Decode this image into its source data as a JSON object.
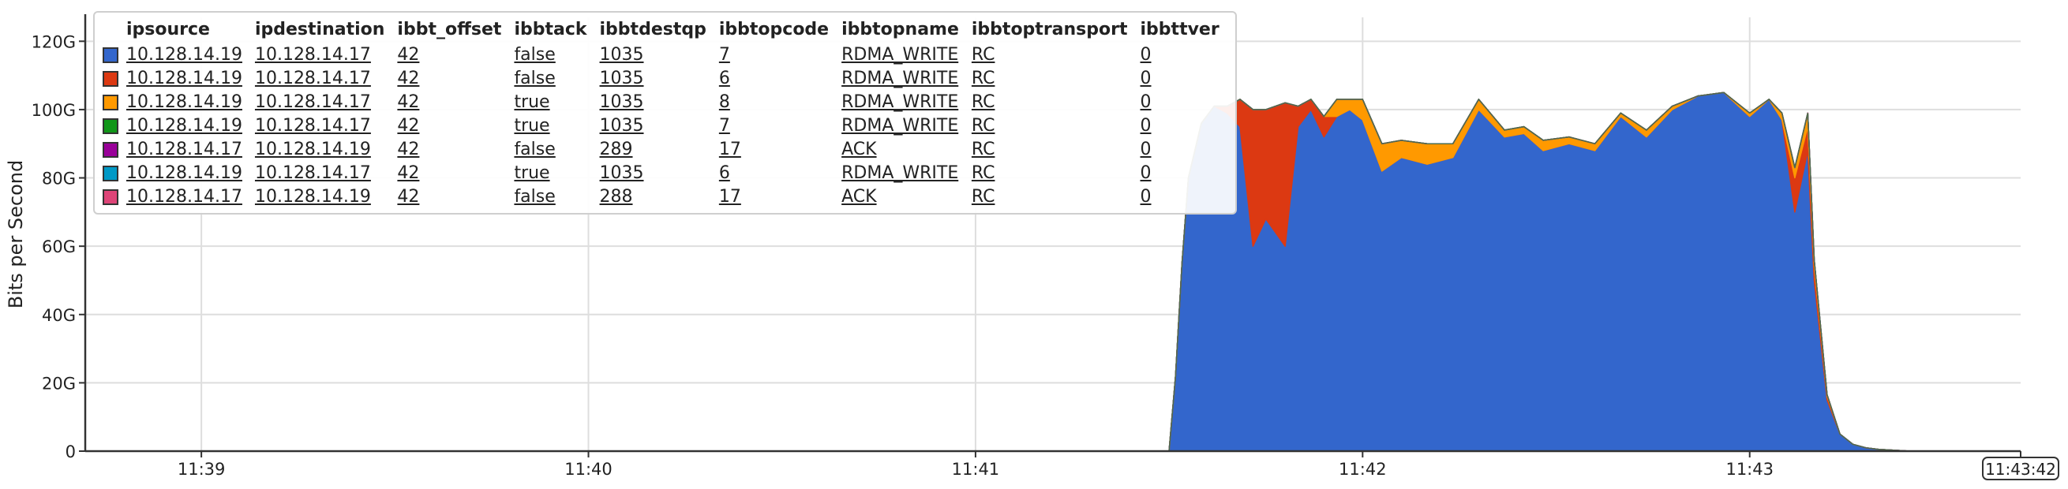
{
  "chart_data": {
    "type": "area",
    "stacked": true,
    "ylabel": "Bits per Second",
    "xlabel": "",
    "y_ticks": [
      {
        "value": 0,
        "label": "0"
      },
      {
        "value": 20,
        "label": "20G"
      },
      {
        "value": 40,
        "label": "40G"
      },
      {
        "value": 60,
        "label": "60G"
      },
      {
        "value": 80,
        "label": "80G"
      },
      {
        "value": 100,
        "label": "100G"
      },
      {
        "value": 120,
        "label": "120G"
      }
    ],
    "ylim": [
      0,
      127
    ],
    "x_range": [
      "11:38:42",
      "11:43:42"
    ],
    "x_ticks": [
      "11:39",
      "11:40",
      "11:41",
      "11:42",
      "11:43"
    ],
    "x_end_label": "11:43:42",
    "grid": true,
    "legend_placement": "top-left",
    "legend_columns": [
      "ipsource",
      "ipdestination",
      "ibbt_offset",
      "ibbtack",
      "ibbtdestqp",
      "ibbtopcode",
      "ibbtopname",
      "ibbtoptransport",
      "ibbttver"
    ],
    "legend_rows": [
      {
        "color": "#3366cc",
        "cells": [
          "10.128.14.19",
          "10.128.14.17",
          "42",
          "false",
          "1035",
          "7",
          "RDMA_WRITE",
          "RC",
          "0"
        ]
      },
      {
        "color": "#dc3912",
        "cells": [
          "10.128.14.19",
          "10.128.14.17",
          "42",
          "false",
          "1035",
          "6",
          "RDMA_WRITE",
          "RC",
          "0"
        ]
      },
      {
        "color": "#ff9900",
        "cells": [
          "10.128.14.19",
          "10.128.14.17",
          "42",
          "true",
          "1035",
          "8",
          "RDMA_WRITE",
          "RC",
          "0"
        ]
      },
      {
        "color": "#109618",
        "cells": [
          "10.128.14.19",
          "10.128.14.17",
          "42",
          "true",
          "1035",
          "7",
          "RDMA_WRITE",
          "RC",
          "0"
        ]
      },
      {
        "color": "#990099",
        "cells": [
          "10.128.14.17",
          "10.128.14.19",
          "42",
          "false",
          "289",
          "17",
          "ACK",
          "RC",
          "0"
        ]
      },
      {
        "color": "#0099c6",
        "cells": [
          "10.128.14.19",
          "10.128.14.17",
          "42",
          "true",
          "1035",
          "6",
          "RDMA_WRITE",
          "RC",
          "0"
        ]
      },
      {
        "color": "#dd4477",
        "cells": [
          "10.128.14.17",
          "10.128.14.19",
          "42",
          "false",
          "288",
          "17",
          "ACK",
          "RC",
          "0"
        ]
      }
    ],
    "x": [
      "11:41:30",
      "11:41:31",
      "11:41:32",
      "11:41:33",
      "11:41:35",
      "11:41:37",
      "11:41:39",
      "11:41:41",
      "11:41:43",
      "11:41:45",
      "11:41:48",
      "11:41:50",
      "11:41:52",
      "11:41:54",
      "11:41:56",
      "11:41:58",
      "11:42:00",
      "11:42:03",
      "11:42:06",
      "11:42:10",
      "11:42:14",
      "11:42:18",
      "11:42:22",
      "11:42:25",
      "11:42:28",
      "11:42:32",
      "11:42:36",
      "11:42:40",
      "11:42:44",
      "11:42:48",
      "11:42:52",
      "11:42:56",
      "11:43:00",
      "11:43:03",
      "11:43:05",
      "11:43:07",
      "11:43:09",
      "11:43:10",
      "11:43:12",
      "11:43:14",
      "11:43:16",
      "11:43:18",
      "11:43:20",
      "11:43:25"
    ],
    "series": [
      {
        "color": "#3366cc",
        "values": [
          0,
          22,
          55,
          80,
          96,
          101,
          99,
          95,
          60,
          68,
          60,
          95,
          100,
          92,
          98,
          100,
          97,
          82,
          86,
          84,
          86,
          100,
          92,
          93,
          88,
          90,
          88,
          98,
          92,
          100,
          104,
          105,
          98,
          103,
          97,
          70,
          88,
          50,
          15,
          5,
          2,
          1,
          0.5,
          0
        ]
      },
      {
        "color": "#dc3912",
        "values": [
          0,
          0,
          0,
          0,
          0,
          0,
          2,
          8,
          40,
          32,
          42,
          6,
          3,
          6,
          0,
          0,
          0,
          0,
          0,
          0,
          0,
          0,
          0,
          0,
          0,
          0,
          0,
          0,
          0,
          0,
          0,
          0,
          0,
          0,
          0,
          10,
          7,
          4,
          1,
          0,
          0,
          0,
          0,
          0
        ]
      },
      {
        "color": "#ff9900",
        "values": [
          0,
          0,
          0,
          0,
          0,
          0,
          0,
          0,
          0,
          0,
          0,
          0,
          0,
          0,
          5,
          3,
          6,
          8,
          5,
          6,
          4,
          3,
          2,
          2,
          3,
          2,
          2,
          1,
          2,
          1,
          0,
          0,
          1,
          0,
          2,
          3,
          4,
          2,
          0.5,
          0,
          0,
          0,
          0,
          0
        ]
      },
      {
        "color": "#109618",
        "values": [
          0,
          0,
          0,
          0,
          0,
          0,
          0,
          0,
          0,
          0,
          0,
          0,
          0,
          0,
          0,
          0,
          0,
          0,
          0,
          0,
          0,
          0,
          0,
          0,
          0,
          0,
          0,
          0,
          0,
          0,
          0,
          0,
          0,
          0,
          0,
          0,
          0,
          0,
          0,
          0,
          0,
          0,
          0,
          0
        ]
      },
      {
        "color": "#990099",
        "values": [
          0,
          0,
          0,
          0,
          0,
          0,
          0,
          0,
          0,
          0,
          0,
          0,
          0,
          0,
          0,
          0,
          0,
          0,
          0,
          0,
          0,
          0,
          0,
          0,
          0,
          0,
          0,
          0,
          0,
          0,
          0,
          0,
          0,
          0,
          0,
          0,
          0,
          0,
          0,
          0,
          0,
          0,
          0,
          0
        ]
      },
      {
        "color": "#0099c6",
        "values": [
          0,
          0,
          0,
          0,
          0,
          0,
          0,
          0,
          0,
          0,
          0,
          0,
          0,
          0,
          0,
          0,
          0,
          0,
          0,
          0,
          0,
          0,
          0,
          0,
          0,
          0,
          0,
          0,
          0,
          0,
          0,
          0,
          0,
          0,
          0,
          0,
          0,
          0,
          0,
          0,
          0,
          0,
          0,
          0
        ]
      },
      {
        "color": "#dd4477",
        "values": [
          0,
          0,
          0,
          0,
          0,
          0,
          0,
          0,
          0,
          0,
          0,
          0,
          0,
          0,
          0,
          0,
          0,
          0,
          0,
          0,
          0,
          0,
          0,
          0,
          0,
          0,
          0,
          0,
          0,
          0,
          0,
          0,
          0,
          0,
          0,
          0,
          0,
          0,
          0,
          0,
          0,
          0,
          0,
          0
        ]
      }
    ]
  }
}
